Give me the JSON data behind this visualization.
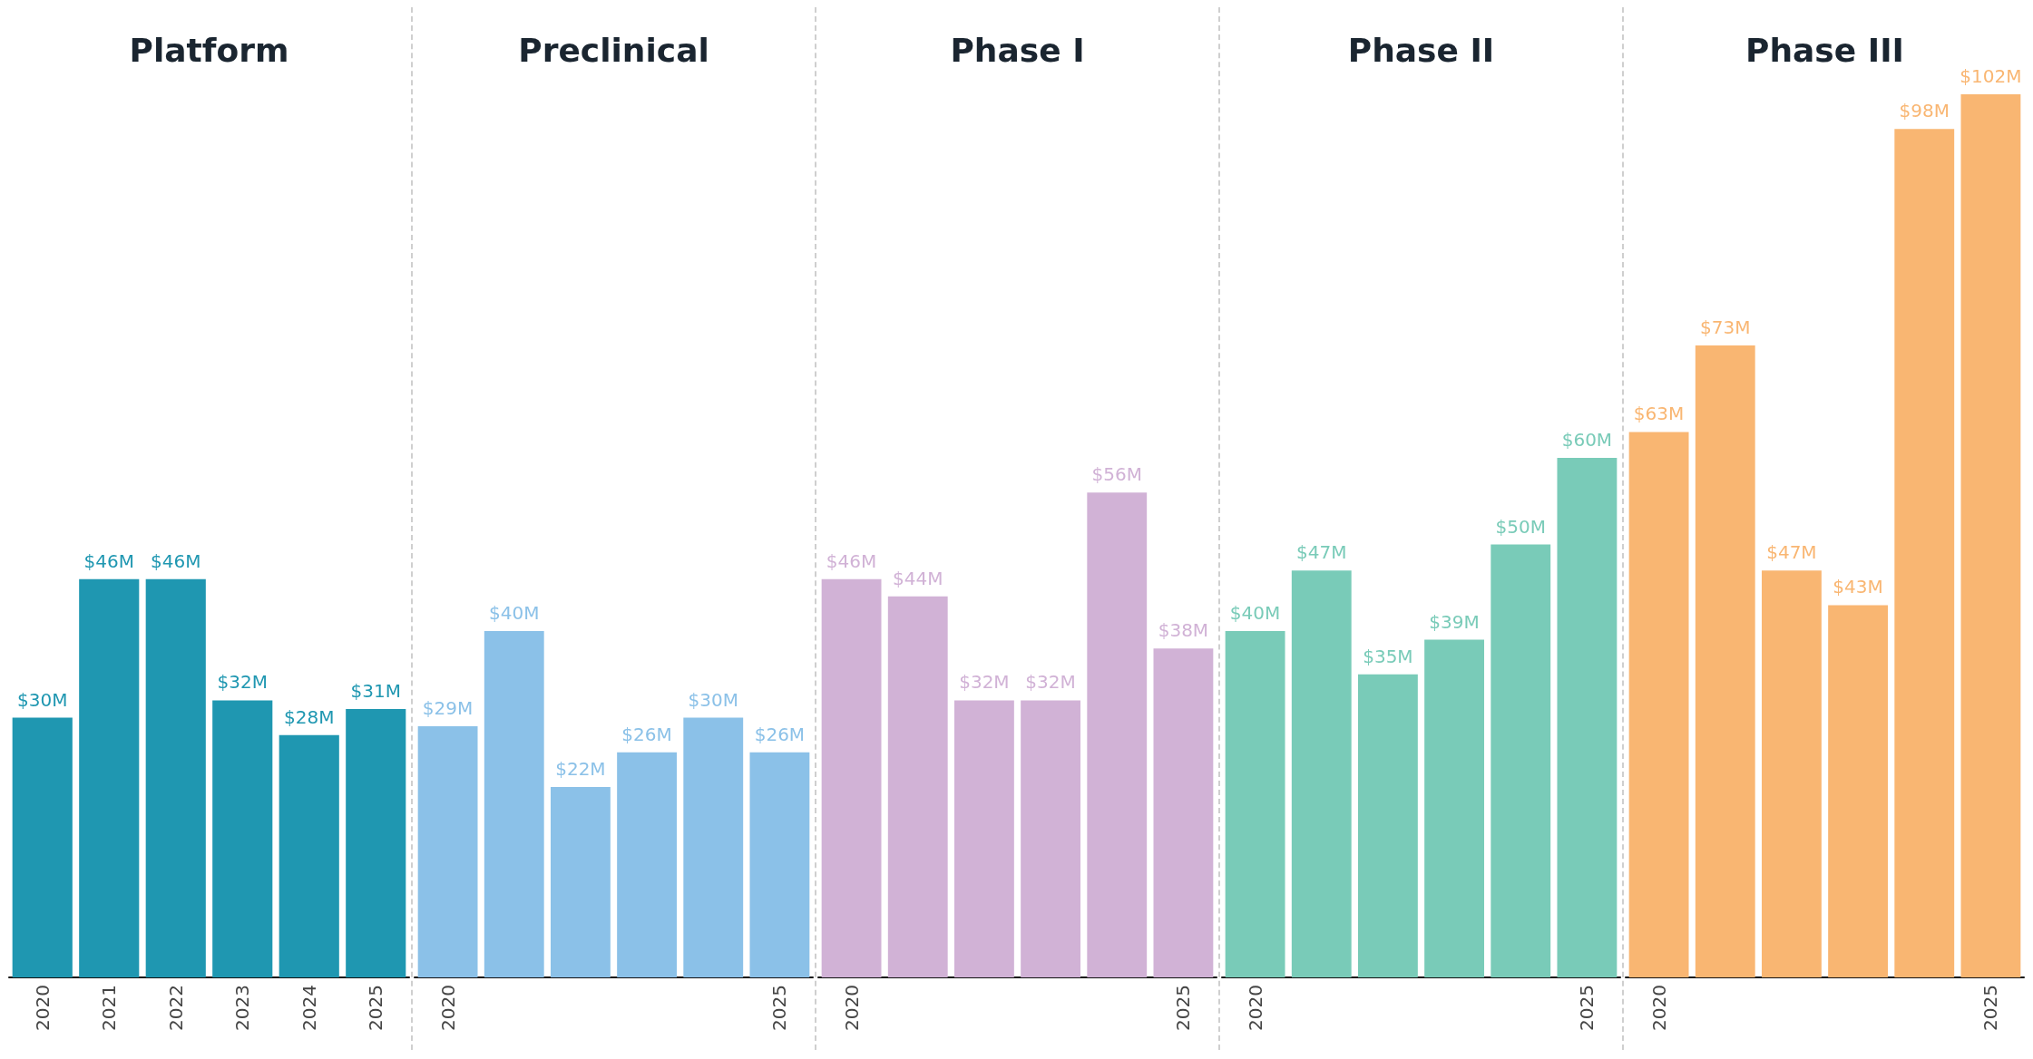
{
  "chart_data": [
    {
      "type": "bar",
      "title": "Platform",
      "categories": [
        "2020",
        "2021",
        "2022",
        "2023",
        "2024",
        "2025"
      ],
      "values": [
        30,
        46,
        46,
        32,
        28,
        31
      ],
      "value_labels": [
        "$30M",
        "$46M",
        "$46M",
        "$32M",
        "$28M",
        "$31M"
      ],
      "color": "#1f97b1"
    },
    {
      "type": "bar",
      "title": "Preclinical",
      "categories": [
        "2020",
        null,
        null,
        null,
        null,
        "2025"
      ],
      "values": [
        29,
        40,
        22,
        26,
        30,
        26
      ],
      "value_labels": [
        "$29M",
        "$40M",
        "$22M",
        "$26M",
        "$30M",
        "$26M"
      ],
      "color": "#8bc1e8"
    },
    {
      "type": "bar",
      "title": "Phase I",
      "categories": [
        "2020",
        null,
        null,
        null,
        null,
        "2025"
      ],
      "values": [
        46,
        44,
        32,
        32,
        56,
        38
      ],
      "value_labels": [
        "$46M",
        "$44M",
        "$32M",
        "$32M",
        "$56M",
        "$38M"
      ],
      "color": "#d1b2d6"
    },
    {
      "type": "bar",
      "title": "Phase II",
      "categories": [
        "2020",
        null,
        null,
        null,
        null,
        "2025"
      ],
      "values": [
        40,
        47,
        35,
        39,
        50,
        60
      ],
      "value_labels": [
        "$40M",
        "$47M",
        "$35M",
        "$39M",
        "$50M",
        "$60M"
      ],
      "color": "#79cbb8"
    },
    {
      "type": "bar",
      "title": "Phase III",
      "categories": [
        "2020",
        null,
        null,
        null,
        null,
        "2025"
      ],
      "values": [
        63,
        73,
        47,
        43,
        98,
        102
      ],
      "value_labels": [
        "$63M",
        "$73M",
        "$47M",
        "$43M",
        "$98M",
        "$102M"
      ],
      "color": "#f9b672"
    }
  ]
}
